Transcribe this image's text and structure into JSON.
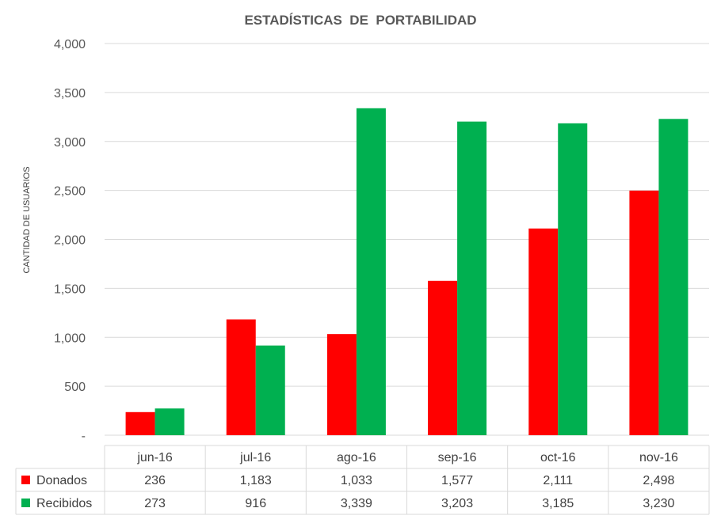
{
  "chart_data": {
    "type": "bar",
    "title": "ESTADÍSTICAS  DE  PORTABILIDAD",
    "ylabel": "CANTIDAD DE USUARIOS",
    "xlabel": "",
    "ylim": [
      0,
      4000
    ],
    "yticks": [
      0,
      500,
      1000,
      1500,
      2000,
      2500,
      3000,
      3500,
      4000
    ],
    "ytick_labels": [
      "-",
      "500",
      "1,000",
      "1,500",
      "2,000",
      "2,500",
      "3,000",
      "3,500",
      "4,000"
    ],
    "categories": [
      "jun-16",
      "jul-16",
      "ago-16",
      "sep-16",
      "oct-16",
      "nov-16"
    ],
    "grid": true,
    "legend": "data-table",
    "series": [
      {
        "name": "Donados",
        "color": "#ff0000",
        "values": [
          236,
          1183,
          1033,
          1577,
          2111,
          2498
        ],
        "labels": [
          "236",
          "1,183",
          "1,033",
          "1,577",
          "2,111",
          "2,498"
        ]
      },
      {
        "name": "Recibidos",
        "color": "#00b050",
        "values": [
          273,
          916,
          3339,
          3203,
          3185,
          3230
        ],
        "labels": [
          "273",
          "916",
          "3,339",
          "3,203",
          "3,185",
          "3,230"
        ]
      }
    ]
  }
}
